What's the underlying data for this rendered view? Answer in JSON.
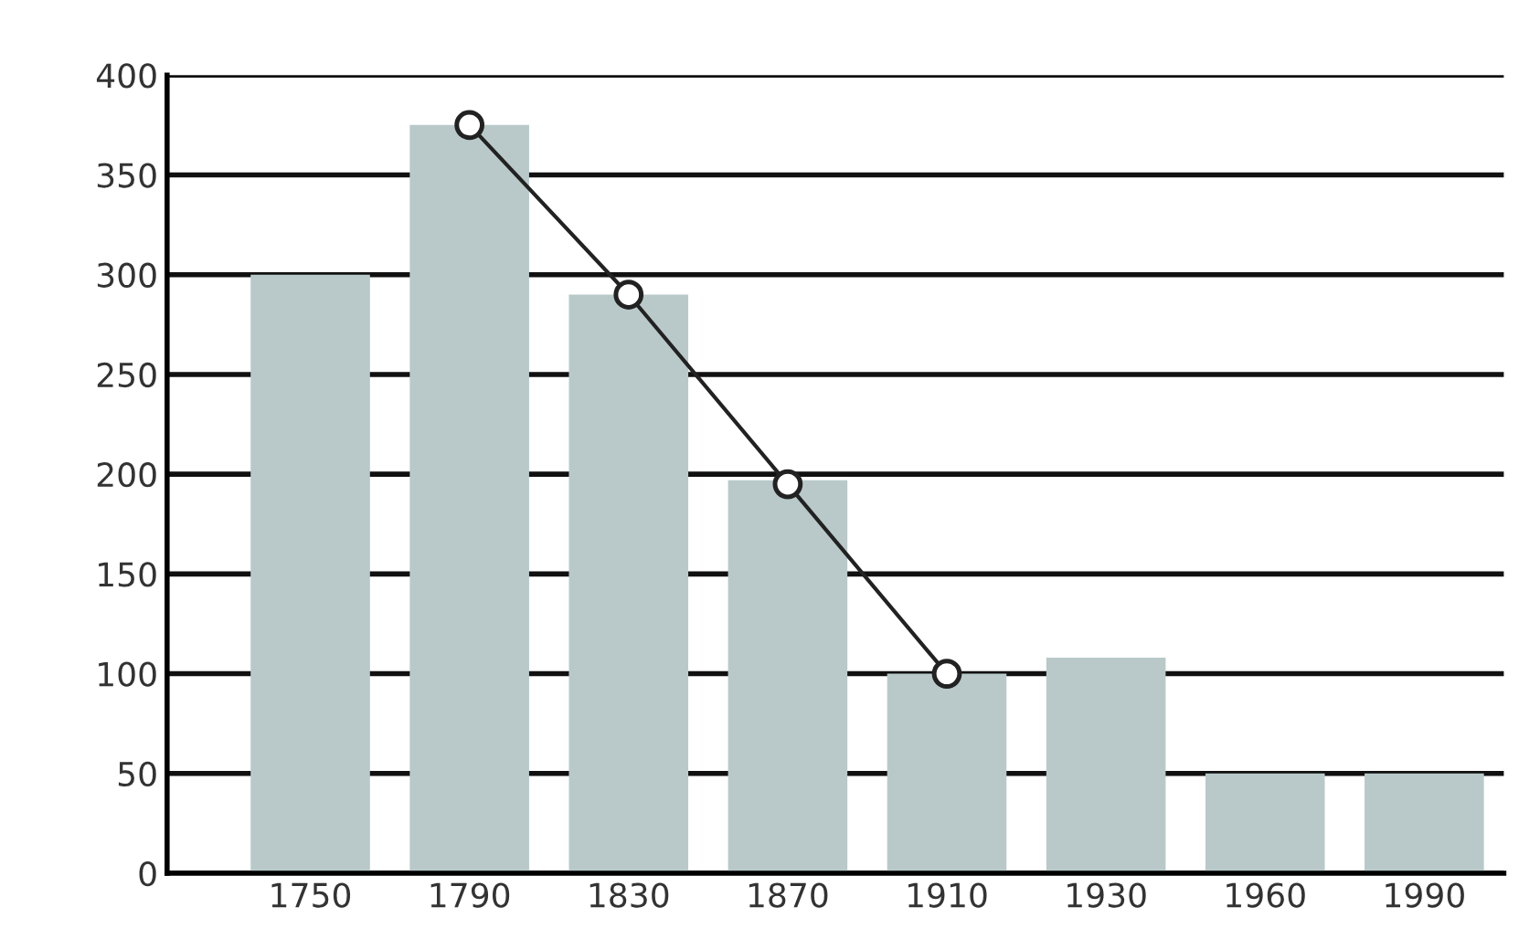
{
  "chart_data": {
    "type": "bar",
    "categories": [
      "1750",
      "1790",
      "1830",
      "1870",
      "1910",
      "1930",
      "1960",
      "1990"
    ],
    "series": [
      {
        "color": "#b9c9c9",
        "values": [
          300,
          375,
          290,
          197,
          100,
          108,
          50,
          50
        ]
      },
      {
        "type": "line",
        "color": "#222222",
        "marker": "circle",
        "line_style": "solid",
        "values": [
          null,
          375,
          290,
          195,
          100,
          null,
          null,
          null
        ]
      }
    ],
    "ylim": [
      0,
      400
    ],
    "yticks": [
      0,
      50,
      100,
      150,
      200,
      250,
      300,
      350,
      400
    ],
    "grid": "y"
  }
}
